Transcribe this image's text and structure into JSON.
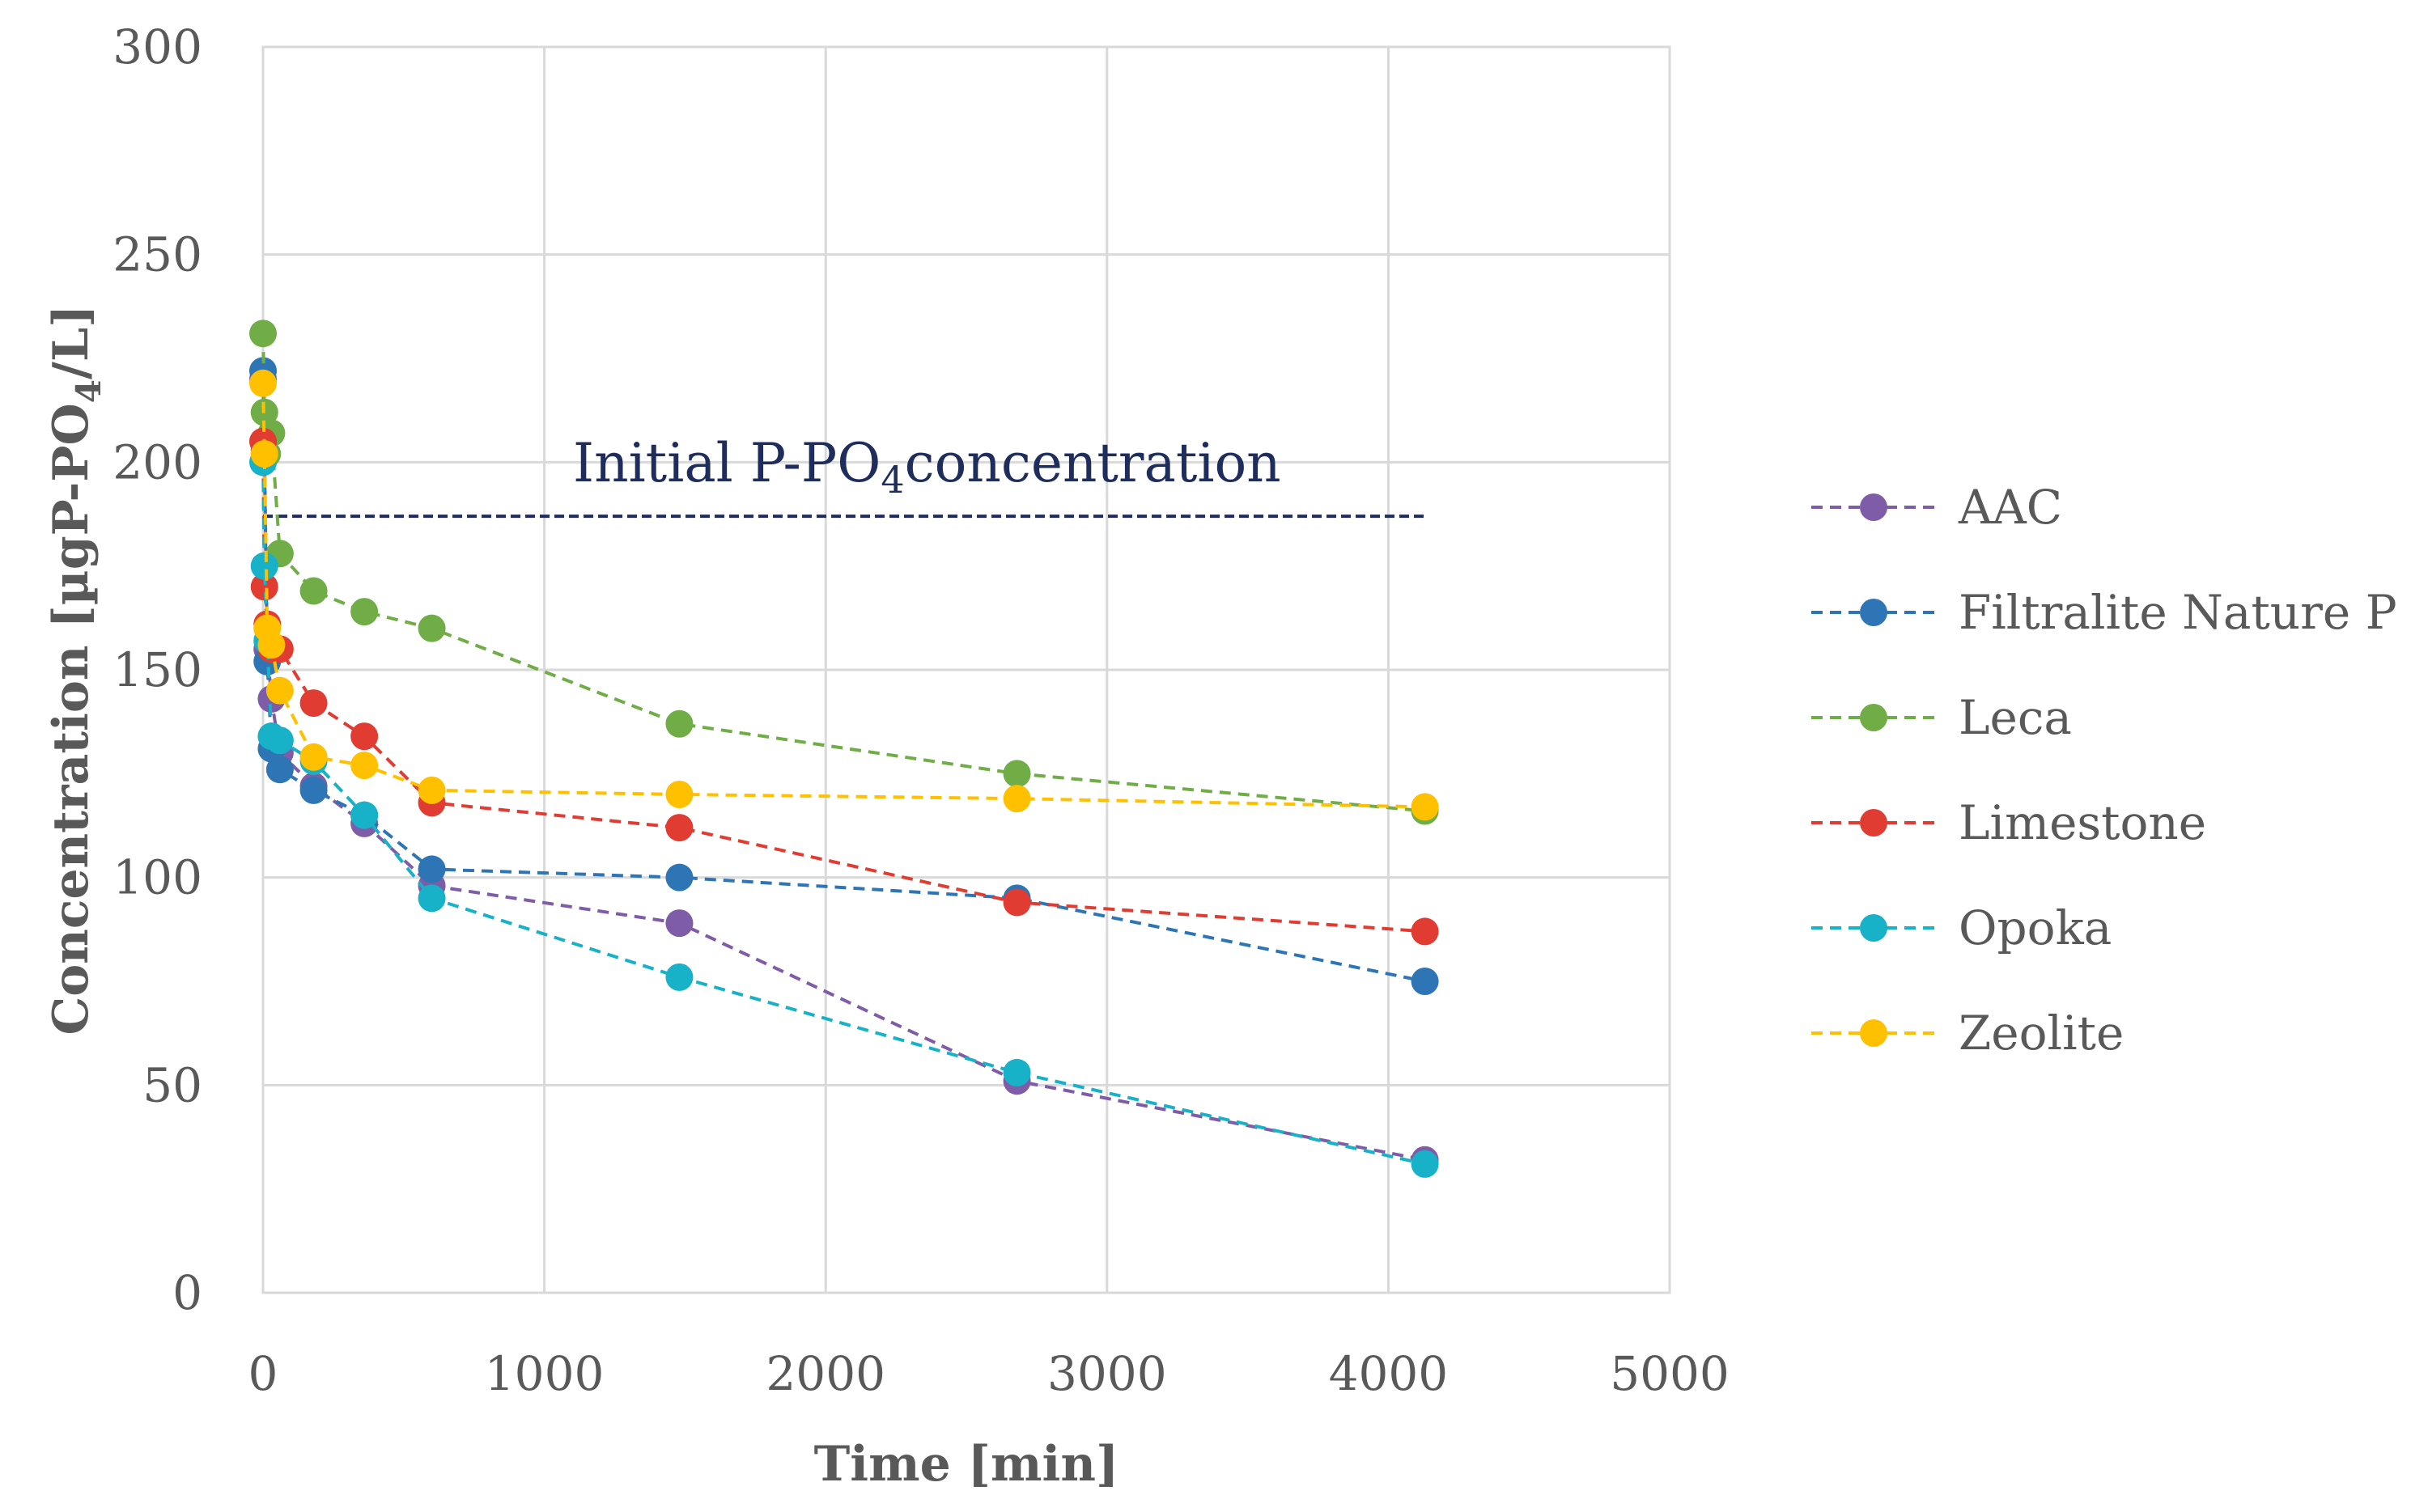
{
  "chart_data": {
    "type": "line",
    "title": "",
    "xlabel": "Time [min]",
    "ylabel_parts": {
      "pre": "Concentration [µgP-PO",
      "sub": "4",
      "post": "/L]"
    },
    "xlim": [
      0,
      5000
    ],
    "ylim": [
      0,
      300
    ],
    "xticks": [
      0,
      1000,
      2000,
      3000,
      4000,
      5000
    ],
    "yticks": [
      0,
      50,
      100,
      150,
      200,
      250,
      300
    ],
    "grid": true,
    "legend_position": "right",
    "annotation": {
      "pre": "Initial P-PO",
      "sub": "4",
      "post": "concentration",
      "value": 187,
      "x_range": [
        0,
        4130
      ],
      "color": "#1f2d5c"
    },
    "series": [
      {
        "name": "AAC",
        "color": "#7f5ca8",
        "x": [
          0,
          5,
          15,
          30,
          60,
          180,
          360,
          600,
          1480,
          2680,
          4130
        ],
        "y": [
          220,
          203,
          155,
          143,
          130,
          122,
          113,
          98,
          89,
          51,
          32
        ]
      },
      {
        "name": "Filtralite Nature P",
        "color": "#2e75b6",
        "x": [
          0,
          5,
          15,
          30,
          60,
          180,
          360,
          600,
          1480,
          2680,
          4130
        ],
        "y": [
          222,
          201,
          152,
          131,
          126,
          121,
          115,
          102,
          100,
          95,
          75
        ]
      },
      {
        "name": "Leca",
        "color": "#70ad47",
        "x": [
          0,
          5,
          15,
          30,
          60,
          180,
          360,
          600,
          1480,
          2680,
          4130
        ],
        "y": [
          231,
          212,
          202,
          207,
          178,
          169,
          164,
          160,
          137,
          125,
          116
        ]
      },
      {
        "name": "Limestone",
        "color": "#e03c31",
        "x": [
          0,
          5,
          15,
          30,
          60,
          180,
          360,
          600,
          1480,
          2680,
          4130
        ],
        "y": [
          205,
          170,
          161,
          155,
          155,
          142,
          134,
          118,
          112,
          94,
          87
        ]
      },
      {
        "name": "Opoka",
        "color": "#17b1c8",
        "x": [
          0,
          5,
          15,
          30,
          60,
          180,
          360,
          600,
          1480,
          2680,
          4130
        ],
        "y": [
          200,
          175,
          157,
          134,
          133,
          128,
          115,
          95,
          76,
          53,
          31
        ]
      },
      {
        "name": "Zeolite",
        "color": "#ffc000",
        "x": [
          0,
          5,
          15,
          30,
          60,
          180,
          360,
          600,
          1480,
          2680,
          4130
        ],
        "y": [
          219,
          202,
          160,
          156,
          145,
          129,
          127,
          121,
          120,
          119,
          117
        ]
      }
    ]
  }
}
